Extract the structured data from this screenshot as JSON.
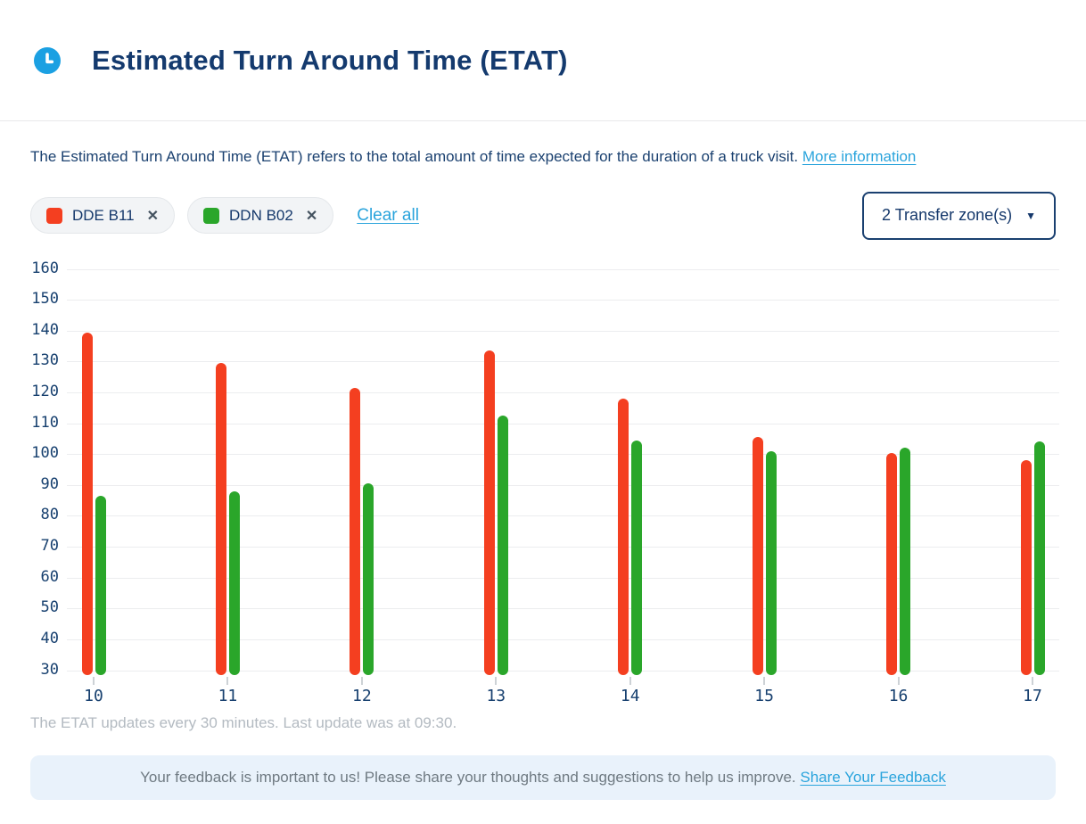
{
  "header": {
    "title": "Estimated Turn Around Time (ETAT)",
    "icon": "clock-icon"
  },
  "description": {
    "text": "The Estimated Turn Around Time (ETAT) refers to the total amount of time expected for the duration of a truck visit.",
    "link_label": "More information"
  },
  "filters": {
    "chips": [
      {
        "label": "DDE B11",
        "color": "#F43F20",
        "remove_icon": "close-icon"
      },
      {
        "label": "DDN B02",
        "color": "#2AA62A",
        "remove_icon": "close-icon"
      }
    ],
    "chip_remove_glyph": "✕",
    "clear_all_label": "Clear all",
    "dropdown": {
      "label": "2 Transfer zone(s)",
      "icon": "chevron-down-icon",
      "caret_glyph": "▼"
    }
  },
  "chart_data": {
    "type": "bar",
    "title": "",
    "xlabel": "",
    "ylabel": "",
    "x": [
      10,
      11,
      12,
      13,
      14,
      15,
      16,
      17
    ],
    "series": [
      {
        "name": "DDE B11",
        "color": "#F43F20",
        "values": [
          139.5,
          129.5,
          121.5,
          133.5,
          118,
          105.5,
          100.5,
          98
        ]
      },
      {
        "name": "DDN B02",
        "color": "#2AA62A",
        "values": [
          86.5,
          88,
          90.5,
          112.5,
          104.5,
          101,
          102,
          104
        ]
      }
    ],
    "ylim": [
      30,
      160
    ],
    "yticks": [
      30,
      40,
      50,
      60,
      70,
      80,
      90,
      100,
      110,
      120,
      130,
      140,
      150,
      160
    ],
    "grid": true,
    "legend_position": "chips-above-chart"
  },
  "footnote": "The ETAT updates every 30 minutes. Last update was at 09:30.",
  "feedback": {
    "text": "Your feedback is important to us! Please share your thoughts and suggestions to help us improve.",
    "link_label": "Share Your Feedback"
  },
  "colors": {
    "accent_red": "#F43F20",
    "accent_green": "#2AA62A",
    "navy": "#15386B",
    "light_blue": "#2AA4DC",
    "icon_blue": "#1BA0E2"
  }
}
